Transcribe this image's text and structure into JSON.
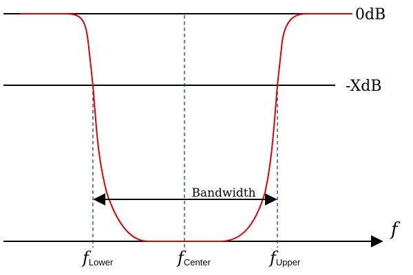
{
  "levels": {
    "top": "0dB",
    "mid": "-XdB"
  },
  "axis": {
    "symbol": "f"
  },
  "bandwidth_label": "Bandwidth",
  "frequencies": {
    "symbol": "f",
    "lower_sub": "Lower",
    "center_sub": "Center",
    "upper_sub": "Upper"
  },
  "colors": {
    "response": "#e00000",
    "marker": "#1f3a7a",
    "line": "#000000"
  }
}
